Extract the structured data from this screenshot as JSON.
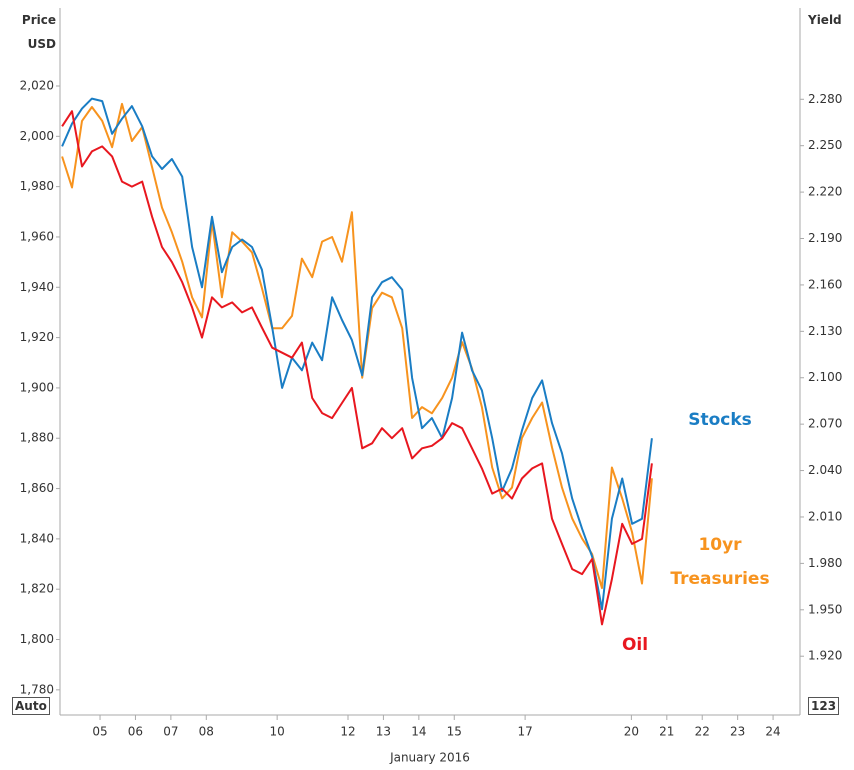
{
  "chart_data": {
    "type": "line",
    "ylabel": "Price USD",
    "y2label": "Yield",
    "xlabel": "January 2016",
    "left_button": "Auto",
    "right_button": "123",
    "x": [
      3.93,
      4.21,
      4.49,
      4.77,
      5.06,
      5.34,
      5.62,
      5.9,
      6.19,
      6.47,
      6.75,
      7.03,
      7.32,
      7.6,
      7.88,
      8.16,
      8.44,
      8.73,
      9.01,
      9.29,
      9.57,
      9.86,
      10.14,
      10.42,
      10.7,
      10.99,
      11.27,
      11.55,
      11.83,
      12.11,
      12.4,
      12.68,
      12.96,
      13.24,
      13.53,
      13.81,
      14.09,
      14.37,
      14.66,
      14.94,
      15.22,
      15.5,
      15.78,
      16.07,
      16.35,
      16.63,
      16.91,
      17.2,
      17.48,
      17.76,
      18.04,
      18.33,
      18.61,
      18.89,
      19.17,
      19.45,
      19.74,
      20.02,
      20.3,
      20.58
    ],
    "series": [
      {
        "name": "Stocks",
        "color": "#1a7dc4",
        "values": [
          1996,
          2005,
          2011,
          2015,
          2014,
          2001,
          2007,
          2012,
          2004,
          1992,
          1987,
          1991,
          1984,
          1956,
          1940,
          1968,
          1946,
          1956,
          1959,
          1956,
          1947,
          1924,
          1900,
          1912,
          1907,
          1918,
          1911,
          1936,
          1927,
          1919,
          1905,
          1936,
          1942,
          1944,
          1939,
          1904,
          1884,
          1888,
          1880,
          1896,
          1922,
          1907,
          1899,
          1880,
          1859,
          1868,
          1883,
          1896,
          1903,
          1886,
          1874,
          1856,
          1844,
          1833,
          1812,
          1848,
          1864,
          1846,
          1848,
          1880
        ]
      },
      {
        "name": "10yr Treasuries",
        "color": "#f7931e",
        "axis": "y2",
        "values": [
          2.243,
          2.223,
          2.266,
          2.275,
          2.266,
          2.249,
          2.277,
          2.253,
          2.262,
          2.236,
          2.21,
          2.194,
          2.175,
          2.152,
          2.139,
          2.201,
          2.152,
          2.194,
          2.188,
          2.181,
          2.158,
          2.132,
          2.132,
          2.14,
          2.177,
          2.165,
          2.188,
          2.191,
          2.175,
          2.207,
          2.1,
          2.145,
          2.155,
          2.152,
          2.132,
          2.074,
          2.081,
          2.077,
          2.087,
          2.1,
          2.123,
          2.106,
          2.081,
          2.042,
          2.022,
          2.029,
          2.061,
          2.074,
          2.084,
          2.055,
          2.029,
          2.009,
          1.996,
          1.986,
          1.964,
          2.042,
          2.022,
          2.0,
          1.967,
          2.035
        ]
      },
      {
        "name": "Oil",
        "color": "#e8171f",
        "values": [
          2004,
          2010,
          1988,
          1994,
          1996,
          1992,
          1982,
          1980,
          1982,
          1968,
          1956,
          1950,
          1942,
          1932,
          1920,
          1936,
          1932,
          1934,
          1930,
          1932,
          1924,
          1916,
          1914,
          1912,
          1918,
          1896,
          1890,
          1888,
          1894,
          1900,
          1876,
          1878,
          1884,
          1880,
          1884,
          1872,
          1876,
          1877,
          1880,
          1886,
          1884,
          1876,
          1868,
          1858,
          1860,
          1856,
          1864,
          1868,
          1870,
          1848,
          1838,
          1828,
          1826,
          1832,
          1806,
          1824,
          1846,
          1838,
          1840,
          1870
        ]
      }
    ],
    "xlim": [
      3.87,
      24.76
    ],
    "xticks": [
      {
        "value": 5,
        "label": "05"
      },
      {
        "value": 6,
        "label": "06"
      },
      {
        "value": 7,
        "label": "07"
      },
      {
        "value": 8,
        "label": "08"
      },
      10,
      12,
      13,
      14,
      15,
      17,
      20,
      21,
      22,
      23,
      24
    ],
    "ylim": [
      1770,
      2051
    ],
    "yticks": [
      {
        "value": 1780,
        "label": "1,780"
      },
      {
        "value": 1800,
        "label": "1,800"
      },
      {
        "value": 1820,
        "label": "1,820"
      },
      {
        "value": 1840,
        "label": "1,840"
      },
      {
        "value": 1860,
        "label": "1,860"
      },
      {
        "value": 1880,
        "label": "1,880"
      },
      {
        "value": 1900,
        "label": "1,900"
      },
      {
        "value": 1920,
        "label": "1,920"
      },
      {
        "value": 1940,
        "label": "1,940"
      },
      {
        "value": 1960,
        "label": "1,960"
      },
      {
        "value": 1980,
        "label": "1,980"
      },
      {
        "value": 2000,
        "label": "2,000"
      },
      {
        "value": 2020,
        "label": "2,020"
      }
    ],
    "y2lim": [
      1.882,
      2.339
    ],
    "y2ticks": [
      {
        "value": 1.92,
        "label": "1.920"
      },
      {
        "value": 1.95,
        "label": "1.950"
      },
      {
        "value": 1.98,
        "label": "1.980"
      },
      {
        "value": 2.01,
        "label": "2.010"
      },
      {
        "value": 2.04,
        "label": "2.040"
      },
      {
        "value": 2.07,
        "label": "2.070"
      },
      {
        "value": 2.1,
        "label": "2.100"
      },
      {
        "value": 2.13,
        "label": "2.130"
      },
      {
        "value": 2.16,
        "label": "2.160"
      },
      {
        "value": 2.19,
        "label": "2.190"
      },
      {
        "value": 2.22,
        "label": "2.220"
      },
      {
        "value": 2.25,
        "label": "2.250"
      },
      {
        "value": 2.28,
        "label": "2.280"
      }
    ]
  }
}
